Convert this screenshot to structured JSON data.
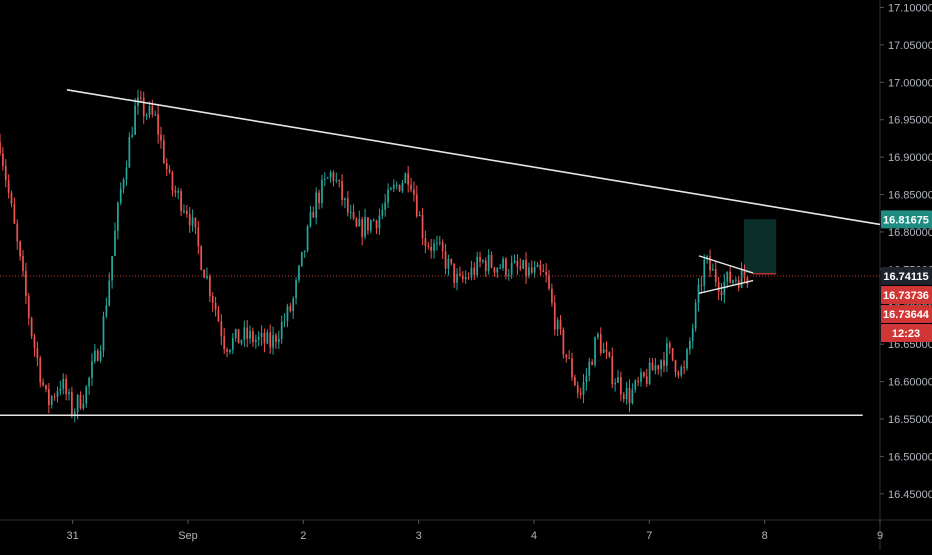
{
  "chart_data": {
    "type": "candlestick",
    "title": "",
    "y_ticks": [
      "16.45000",
      "16.50000",
      "16.55000",
      "16.60000",
      "16.65000",
      "16.70000",
      "16.75000",
      "16.80000",
      "16.85000",
      "16.90000",
      "16.95000",
      "17.00000",
      "17.05000",
      "17.10000"
    ],
    "y_tick_values": [
      16.45,
      16.5,
      16.55,
      16.6,
      16.65,
      16.7,
      16.75,
      16.8,
      16.85,
      16.9,
      16.95,
      17.0,
      17.05,
      17.1
    ],
    "ylim": [
      16.415,
      17.11
    ],
    "x_ticks": [
      "31",
      "Sep",
      "2",
      "3",
      "4",
      "7",
      "8",
      "9"
    ],
    "x_tick_positions": [
      0,
      1,
      2,
      3,
      4,
      5,
      6,
      7
    ],
    "xlim": [
      -0.63,
      7.0
    ],
    "price_labels": [
      {
        "text": "16.81675",
        "value": 16.81675,
        "color": "#1e8c80"
      },
      {
        "text": "16.74115",
        "value": 16.74115,
        "color": "#1e222d"
      },
      {
        "text": "16.73736",
        "value": 16.73736,
        "color": "#d13636"
      },
      {
        "text": "16.73644",
        "value": 16.73644,
        "color": "#d13636"
      },
      {
        "text": "12:23",
        "value": 16.695,
        "color": "#d13636"
      }
    ],
    "current_price": 16.74115,
    "trendlines": [
      {
        "name": "descending-resistance",
        "from": [
          -0.05,
          16.99
        ],
        "to": [
          7.0,
          16.81
        ]
      },
      {
        "name": "horizontal-support",
        "from": [
          -0.63,
          16.555
        ],
        "to": [
          6.85,
          16.555
        ]
      }
    ],
    "pennant": {
      "upper": {
        "from": [
          5.43,
          16.768
        ],
        "to": [
          5.9,
          16.745
        ]
      },
      "lower": {
        "from": [
          5.43,
          16.718
        ],
        "to": [
          5.9,
          16.735
        ]
      },
      "apex_line": {
        "from": [
          5.9,
          16.744
        ],
        "to": [
          6.1,
          16.744
        ]
      }
    },
    "target_box": {
      "x0": 5.82,
      "x1": 6.1,
      "y0": 16.745,
      "y1": 16.817
    },
    "waypoints": [
      [
        -0.63,
        16.92
      ],
      [
        -0.5,
        16.8
      ],
      [
        -0.35,
        16.66
      ],
      [
        -0.22,
        16.57
      ],
      [
        -0.1,
        16.6
      ],
      [
        0.0,
        16.56
      ],
      [
        0.12,
        16.59
      ],
      [
        0.25,
        16.66
      ],
      [
        0.42,
        16.86
      ],
      [
        0.55,
        16.97
      ],
      [
        0.72,
        16.95
      ],
      [
        0.85,
        16.86
      ],
      [
        1.0,
        16.83
      ],
      [
        1.12,
        16.76
      ],
      [
        1.22,
        16.71
      ],
      [
        1.32,
        16.65
      ],
      [
        1.5,
        16.66
      ],
      [
        1.72,
        16.65
      ],
      [
        1.9,
        16.7
      ],
      [
        2.1,
        16.84
      ],
      [
        2.25,
        16.88
      ],
      [
        2.45,
        16.8
      ],
      [
        2.65,
        16.82
      ],
      [
        2.8,
        16.86
      ],
      [
        2.92,
        16.88
      ],
      [
        3.05,
        16.79
      ],
      [
        3.2,
        16.77
      ],
      [
        3.35,
        16.73
      ],
      [
        3.55,
        16.76
      ],
      [
        3.85,
        16.75
      ],
      [
        4.1,
        16.74
      ],
      [
        4.2,
        16.67
      ],
      [
        4.4,
        16.58
      ],
      [
        4.55,
        16.66
      ],
      [
        4.68,
        16.61
      ],
      [
        4.82,
        16.58
      ],
      [
        5.0,
        16.61
      ],
      [
        5.15,
        16.64
      ],
      [
        5.3,
        16.61
      ],
      [
        5.42,
        16.71
      ],
      [
        5.48,
        16.76
      ],
      [
        5.62,
        16.73
      ],
      [
        5.75,
        16.74
      ],
      [
        5.85,
        16.741
      ]
    ]
  },
  "colors": {
    "up": "#26a69a",
    "down": "#ef5350",
    "line": "#e6e6e6",
    "price_line": "#d13636",
    "grid": "#2a2e39",
    "box": "#0b2f2a"
  }
}
